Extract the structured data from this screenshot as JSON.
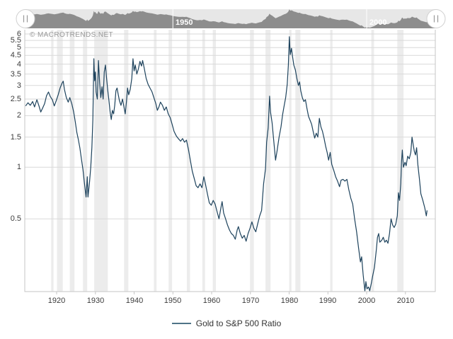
{
  "watermark": "© MACROTRENDS.NET",
  "navigator": {
    "range_labels": [
      {
        "label": "1950",
        "year": 1950
      },
      {
        "label": "2000",
        "year": 2000
      }
    ],
    "left_handle_icon": "resize-handle-icon",
    "right_handle_icon": "resize-handle-icon"
  },
  "legend": {
    "label": "Gold to S&P 500 Ratio"
  },
  "colors": {
    "background": "#ffffff",
    "recession_band": "#ececec",
    "gridline": "#d9d9d9",
    "axis_border": "#c6c6c6",
    "nav_background": "#e7e7e7",
    "nav_area": "#8d8d8d",
    "nav_plotline": "#ffffff",
    "nav_label": "#ffffff",
    "tick_label": "#3c3c3c",
    "watermark": "#9a9a9a",
    "series_line": "#1d425c",
    "legend_sample": "#4f7487",
    "legend_text": "#333333",
    "handle_fill": "#ffffff",
    "handle_border": "#cfcfcf",
    "handle_grip": "#9a9a9a"
  },
  "chart_data": {
    "type": "line",
    "title": "Gold to S&P 500 Ratio",
    "xlabel": "",
    "ylabel": "",
    "y_scale": "log",
    "ylim": [
      0.188,
      6.35
    ],
    "xlim": [
      1911.8,
      2017.8
    ],
    "grid": true,
    "legend_position": "bottom",
    "x_ticks": [
      1920,
      1930,
      1940,
      1950,
      1960,
      1970,
      1980,
      1990,
      2000,
      2010
    ],
    "y_ticks": [
      6,
      5.5,
      5,
      4.5,
      4,
      3.5,
      3,
      2.5,
      2,
      1.5,
      1,
      0.5
    ],
    "recession_bands": [
      [
        1918.6,
        1919.2
      ],
      [
        1920.1,
        1921.6
      ],
      [
        1923.4,
        1924.6
      ],
      [
        1926.8,
        1927.9
      ],
      [
        1929.7,
        1933.2
      ],
      [
        1937.4,
        1938.5
      ],
      [
        1945.1,
        1945.8
      ],
      [
        1948.9,
        1949.8
      ],
      [
        1953.6,
        1954.4
      ],
      [
        1957.6,
        1958.3
      ],
      [
        1960.3,
        1961.1
      ],
      [
        1969.9,
        1970.9
      ],
      [
        1973.9,
        1975.2
      ],
      [
        1980.0,
        1980.6
      ],
      [
        1981.6,
        1982.9
      ],
      [
        1990.6,
        1991.2
      ],
      [
        2001.2,
        2001.9
      ],
      [
        2007.9,
        2009.5
      ]
    ],
    "series": [
      {
        "name": "Gold to S&P 500 Ratio",
        "color": "#1d425c",
        "points": [
          [
            1912.0,
            2.28
          ],
          [
            1912.6,
            2.38
          ],
          [
            1913.2,
            2.3
          ],
          [
            1913.8,
            2.42
          ],
          [
            1914.3,
            2.25
          ],
          [
            1914.9,
            2.48
          ],
          [
            1915.4,
            2.3
          ],
          [
            1915.9,
            2.1
          ],
          [
            1916.4,
            2.22
          ],
          [
            1916.9,
            2.35
          ],
          [
            1917.4,
            2.62
          ],
          [
            1917.9,
            2.75
          ],
          [
            1918.4,
            2.58
          ],
          [
            1918.9,
            2.48
          ],
          [
            1919.4,
            2.28
          ],
          [
            1919.9,
            2.45
          ],
          [
            1920.4,
            2.65
          ],
          [
            1920.9,
            2.9
          ],
          [
            1921.4,
            3.1
          ],
          [
            1921.7,
            3.18
          ],
          [
            1922.0,
            2.85
          ],
          [
            1922.5,
            2.55
          ],
          [
            1923.0,
            2.4
          ],
          [
            1923.4,
            2.55
          ],
          [
            1923.9,
            2.35
          ],
          [
            1924.4,
            2.1
          ],
          [
            1924.8,
            1.85
          ],
          [
            1925.2,
            1.6
          ],
          [
            1925.6,
            1.45
          ],
          [
            1926.0,
            1.3
          ],
          [
            1926.4,
            1.12
          ],
          [
            1926.8,
            0.97
          ],
          [
            1927.2,
            0.8
          ],
          [
            1927.6,
            0.67
          ],
          [
            1927.9,
            0.88
          ],
          [
            1928.1,
            0.67
          ],
          [
            1928.5,
            0.82
          ],
          [
            1928.8,
            1.0
          ],
          [
            1929.1,
            1.3
          ],
          [
            1929.35,
            1.9
          ],
          [
            1929.6,
            4.3
          ],
          [
            1929.8,
            3.2
          ],
          [
            1930.0,
            3.6
          ],
          [
            1930.2,
            2.75
          ],
          [
            1930.5,
            2.5
          ],
          [
            1930.8,
            4.2
          ],
          [
            1931.1,
            3.1
          ],
          [
            1931.4,
            2.55
          ],
          [
            1931.7,
            2.95
          ],
          [
            1932.0,
            2.5
          ],
          [
            1932.3,
            3.6
          ],
          [
            1932.6,
            3.95
          ],
          [
            1932.9,
            3.3
          ],
          [
            1933.2,
            2.8
          ],
          [
            1933.5,
            2.45
          ],
          [
            1933.8,
            2.1
          ],
          [
            1934.1,
            1.9
          ],
          [
            1934.4,
            2.15
          ],
          [
            1934.7,
            2.05
          ],
          [
            1935.0,
            2.3
          ],
          [
            1935.3,
            2.8
          ],
          [
            1935.6,
            2.9
          ],
          [
            1935.9,
            2.65
          ],
          [
            1936.2,
            2.45
          ],
          [
            1936.6,
            2.3
          ],
          [
            1937.0,
            2.5
          ],
          [
            1937.3,
            2.3
          ],
          [
            1937.7,
            2.05
          ],
          [
            1938.0,
            2.4
          ],
          [
            1938.3,
            2.9
          ],
          [
            1938.6,
            2.65
          ],
          [
            1939.0,
            2.85
          ],
          [
            1939.4,
            3.3
          ],
          [
            1939.7,
            4.3
          ],
          [
            1940.0,
            3.65
          ],
          [
            1940.3,
            3.95
          ],
          [
            1940.7,
            3.5
          ],
          [
            1941.1,
            3.75
          ],
          [
            1941.5,
            4.15
          ],
          [
            1941.9,
            3.9
          ],
          [
            1942.2,
            4.2
          ],
          [
            1942.6,
            3.8
          ],
          [
            1943.1,
            3.3
          ],
          [
            1943.6,
            3.05
          ],
          [
            1944.1,
            2.9
          ],
          [
            1944.6,
            2.76
          ],
          [
            1945.1,
            2.55
          ],
          [
            1945.6,
            2.35
          ],
          [
            1946.0,
            2.15
          ],
          [
            1946.4,
            2.25
          ],
          [
            1946.8,
            2.4
          ],
          [
            1947.3,
            2.3
          ],
          [
            1947.8,
            2.15
          ],
          [
            1948.3,
            2.25
          ],
          [
            1948.8,
            2.05
          ],
          [
            1949.3,
            1.95
          ],
          [
            1949.8,
            1.78
          ],
          [
            1950.3,
            1.62
          ],
          [
            1950.9,
            1.52
          ],
          [
            1951.4,
            1.47
          ],
          [
            1952.0,
            1.42
          ],
          [
            1952.5,
            1.47
          ],
          [
            1953.0,
            1.4
          ],
          [
            1953.5,
            1.44
          ],
          [
            1954.0,
            1.28
          ],
          [
            1954.5,
            1.1
          ],
          [
            1955.0,
            0.95
          ],
          [
            1955.5,
            0.86
          ],
          [
            1956.0,
            0.78
          ],
          [
            1956.5,
            0.76
          ],
          [
            1957.0,
            0.8
          ],
          [
            1957.5,
            0.76
          ],
          [
            1958.0,
            0.88
          ],
          [
            1958.4,
            0.8
          ],
          [
            1958.9,
            0.7
          ],
          [
            1959.4,
            0.62
          ],
          [
            1959.9,
            0.6
          ],
          [
            1960.4,
            0.64
          ],
          [
            1960.9,
            0.61
          ],
          [
            1961.4,
            0.55
          ],
          [
            1961.9,
            0.5
          ],
          [
            1962.4,
            0.58
          ],
          [
            1962.7,
            0.63
          ],
          [
            1963.1,
            0.54
          ],
          [
            1963.6,
            0.5
          ],
          [
            1964.1,
            0.46
          ],
          [
            1964.6,
            0.43
          ],
          [
            1965.1,
            0.41
          ],
          [
            1965.6,
            0.4
          ],
          [
            1966.1,
            0.38
          ],
          [
            1966.6,
            0.43
          ],
          [
            1966.9,
            0.45
          ],
          [
            1967.4,
            0.41
          ],
          [
            1967.9,
            0.385
          ],
          [
            1968.4,
            0.4
          ],
          [
            1968.9,
            0.37
          ],
          [
            1969.4,
            0.41
          ],
          [
            1969.9,
            0.44
          ],
          [
            1970.4,
            0.48
          ],
          [
            1970.9,
            0.44
          ],
          [
            1971.4,
            0.42
          ],
          [
            1971.9,
            0.47
          ],
          [
            1972.4,
            0.52
          ],
          [
            1972.9,
            0.56
          ],
          [
            1973.4,
            0.8
          ],
          [
            1973.9,
            0.98
          ],
          [
            1974.2,
            1.4
          ],
          [
            1974.6,
            1.7
          ],
          [
            1974.95,
            2.6
          ],
          [
            1975.2,
            2.1
          ],
          [
            1975.6,
            1.82
          ],
          [
            1976.0,
            1.45
          ],
          [
            1976.5,
            1.1
          ],
          [
            1976.9,
            1.25
          ],
          [
            1977.4,
            1.5
          ],
          [
            1977.9,
            1.72
          ],
          [
            1978.3,
            2.02
          ],
          [
            1978.7,
            2.28
          ],
          [
            1979.1,
            2.55
          ],
          [
            1979.5,
            3.05
          ],
          [
            1979.8,
            3.95
          ],
          [
            1980.05,
            5.78
          ],
          [
            1980.3,
            4.55
          ],
          [
            1980.6,
            4.95
          ],
          [
            1980.9,
            4.4
          ],
          [
            1981.2,
            3.95
          ],
          [
            1981.6,
            3.7
          ],
          [
            1982.0,
            3.3
          ],
          [
            1982.4,
            3.0
          ],
          [
            1982.7,
            3.15
          ],
          [
            1983.0,
            2.8
          ],
          [
            1983.4,
            2.55
          ],
          [
            1983.8,
            2.42
          ],
          [
            1984.2,
            2.48
          ],
          [
            1984.6,
            2.2
          ],
          [
            1985.0,
            1.98
          ],
          [
            1985.4,
            1.88
          ],
          [
            1985.8,
            1.78
          ],
          [
            1986.2,
            1.62
          ],
          [
            1986.6,
            1.48
          ],
          [
            1987.0,
            1.58
          ],
          [
            1987.4,
            1.5
          ],
          [
            1987.8,
            1.93
          ],
          [
            1988.2,
            1.72
          ],
          [
            1988.6,
            1.62
          ],
          [
            1989.0,
            1.48
          ],
          [
            1989.4,
            1.33
          ],
          [
            1989.8,
            1.22
          ],
          [
            1990.2,
            1.1
          ],
          [
            1990.6,
            1.22
          ],
          [
            1991.0,
            1.04
          ],
          [
            1991.5,
            0.96
          ],
          [
            1992.0,
            0.88
          ],
          [
            1992.5,
            0.83
          ],
          [
            1993.0,
            0.77
          ],
          [
            1993.4,
            0.84
          ],
          [
            1993.9,
            0.85
          ],
          [
            1994.4,
            0.83
          ],
          [
            1994.9,
            0.85
          ],
          [
            1995.4,
            0.74
          ],
          [
            1995.9,
            0.66
          ],
          [
            1996.4,
            0.61
          ],
          [
            1996.9,
            0.5
          ],
          [
            1997.4,
            0.42
          ],
          [
            1997.9,
            0.34
          ],
          [
            1998.4,
            0.28
          ],
          [
            1998.7,
            0.3
          ],
          [
            1999.1,
            0.235
          ],
          [
            1999.55,
            0.19
          ],
          [
            1999.8,
            0.215
          ],
          [
            2000.1,
            0.195
          ],
          [
            2000.5,
            0.2
          ],
          [
            2000.8,
            0.19
          ],
          [
            2001.2,
            0.21
          ],
          [
            2001.6,
            0.235
          ],
          [
            2002.0,
            0.26
          ],
          [
            2002.5,
            0.33
          ],
          [
            2002.8,
            0.39
          ],
          [
            2003.1,
            0.41
          ],
          [
            2003.4,
            0.365
          ],
          [
            2003.9,
            0.375
          ],
          [
            2004.3,
            0.39
          ],
          [
            2004.7,
            0.365
          ],
          [
            2005.1,
            0.375
          ],
          [
            2005.5,
            0.36
          ],
          [
            2005.9,
            0.41
          ],
          [
            2006.3,
            0.5
          ],
          [
            2006.7,
            0.46
          ],
          [
            2007.1,
            0.445
          ],
          [
            2007.5,
            0.465
          ],
          [
            2007.9,
            0.52
          ],
          [
            2008.2,
            0.71
          ],
          [
            2008.5,
            0.64
          ],
          [
            2008.8,
            0.8
          ],
          [
            2009.0,
            1.08
          ],
          [
            2009.2,
            1.26
          ],
          [
            2009.5,
            1.0
          ],
          [
            2009.9,
            1.07
          ],
          [
            2010.2,
            1.02
          ],
          [
            2010.6,
            1.16
          ],
          [
            2011.0,
            1.12
          ],
          [
            2011.4,
            1.22
          ],
          [
            2011.7,
            1.5
          ],
          [
            2012.0,
            1.36
          ],
          [
            2012.3,
            1.24
          ],
          [
            2012.6,
            1.18
          ],
          [
            2012.9,
            1.3
          ],
          [
            2013.2,
            1.04
          ],
          [
            2013.6,
            0.86
          ],
          [
            2014.0,
            0.7
          ],
          [
            2014.5,
            0.64
          ],
          [
            2015.0,
            0.58
          ],
          [
            2015.4,
            0.52
          ],
          [
            2015.6,
            0.56
          ]
        ]
      }
    ]
  }
}
